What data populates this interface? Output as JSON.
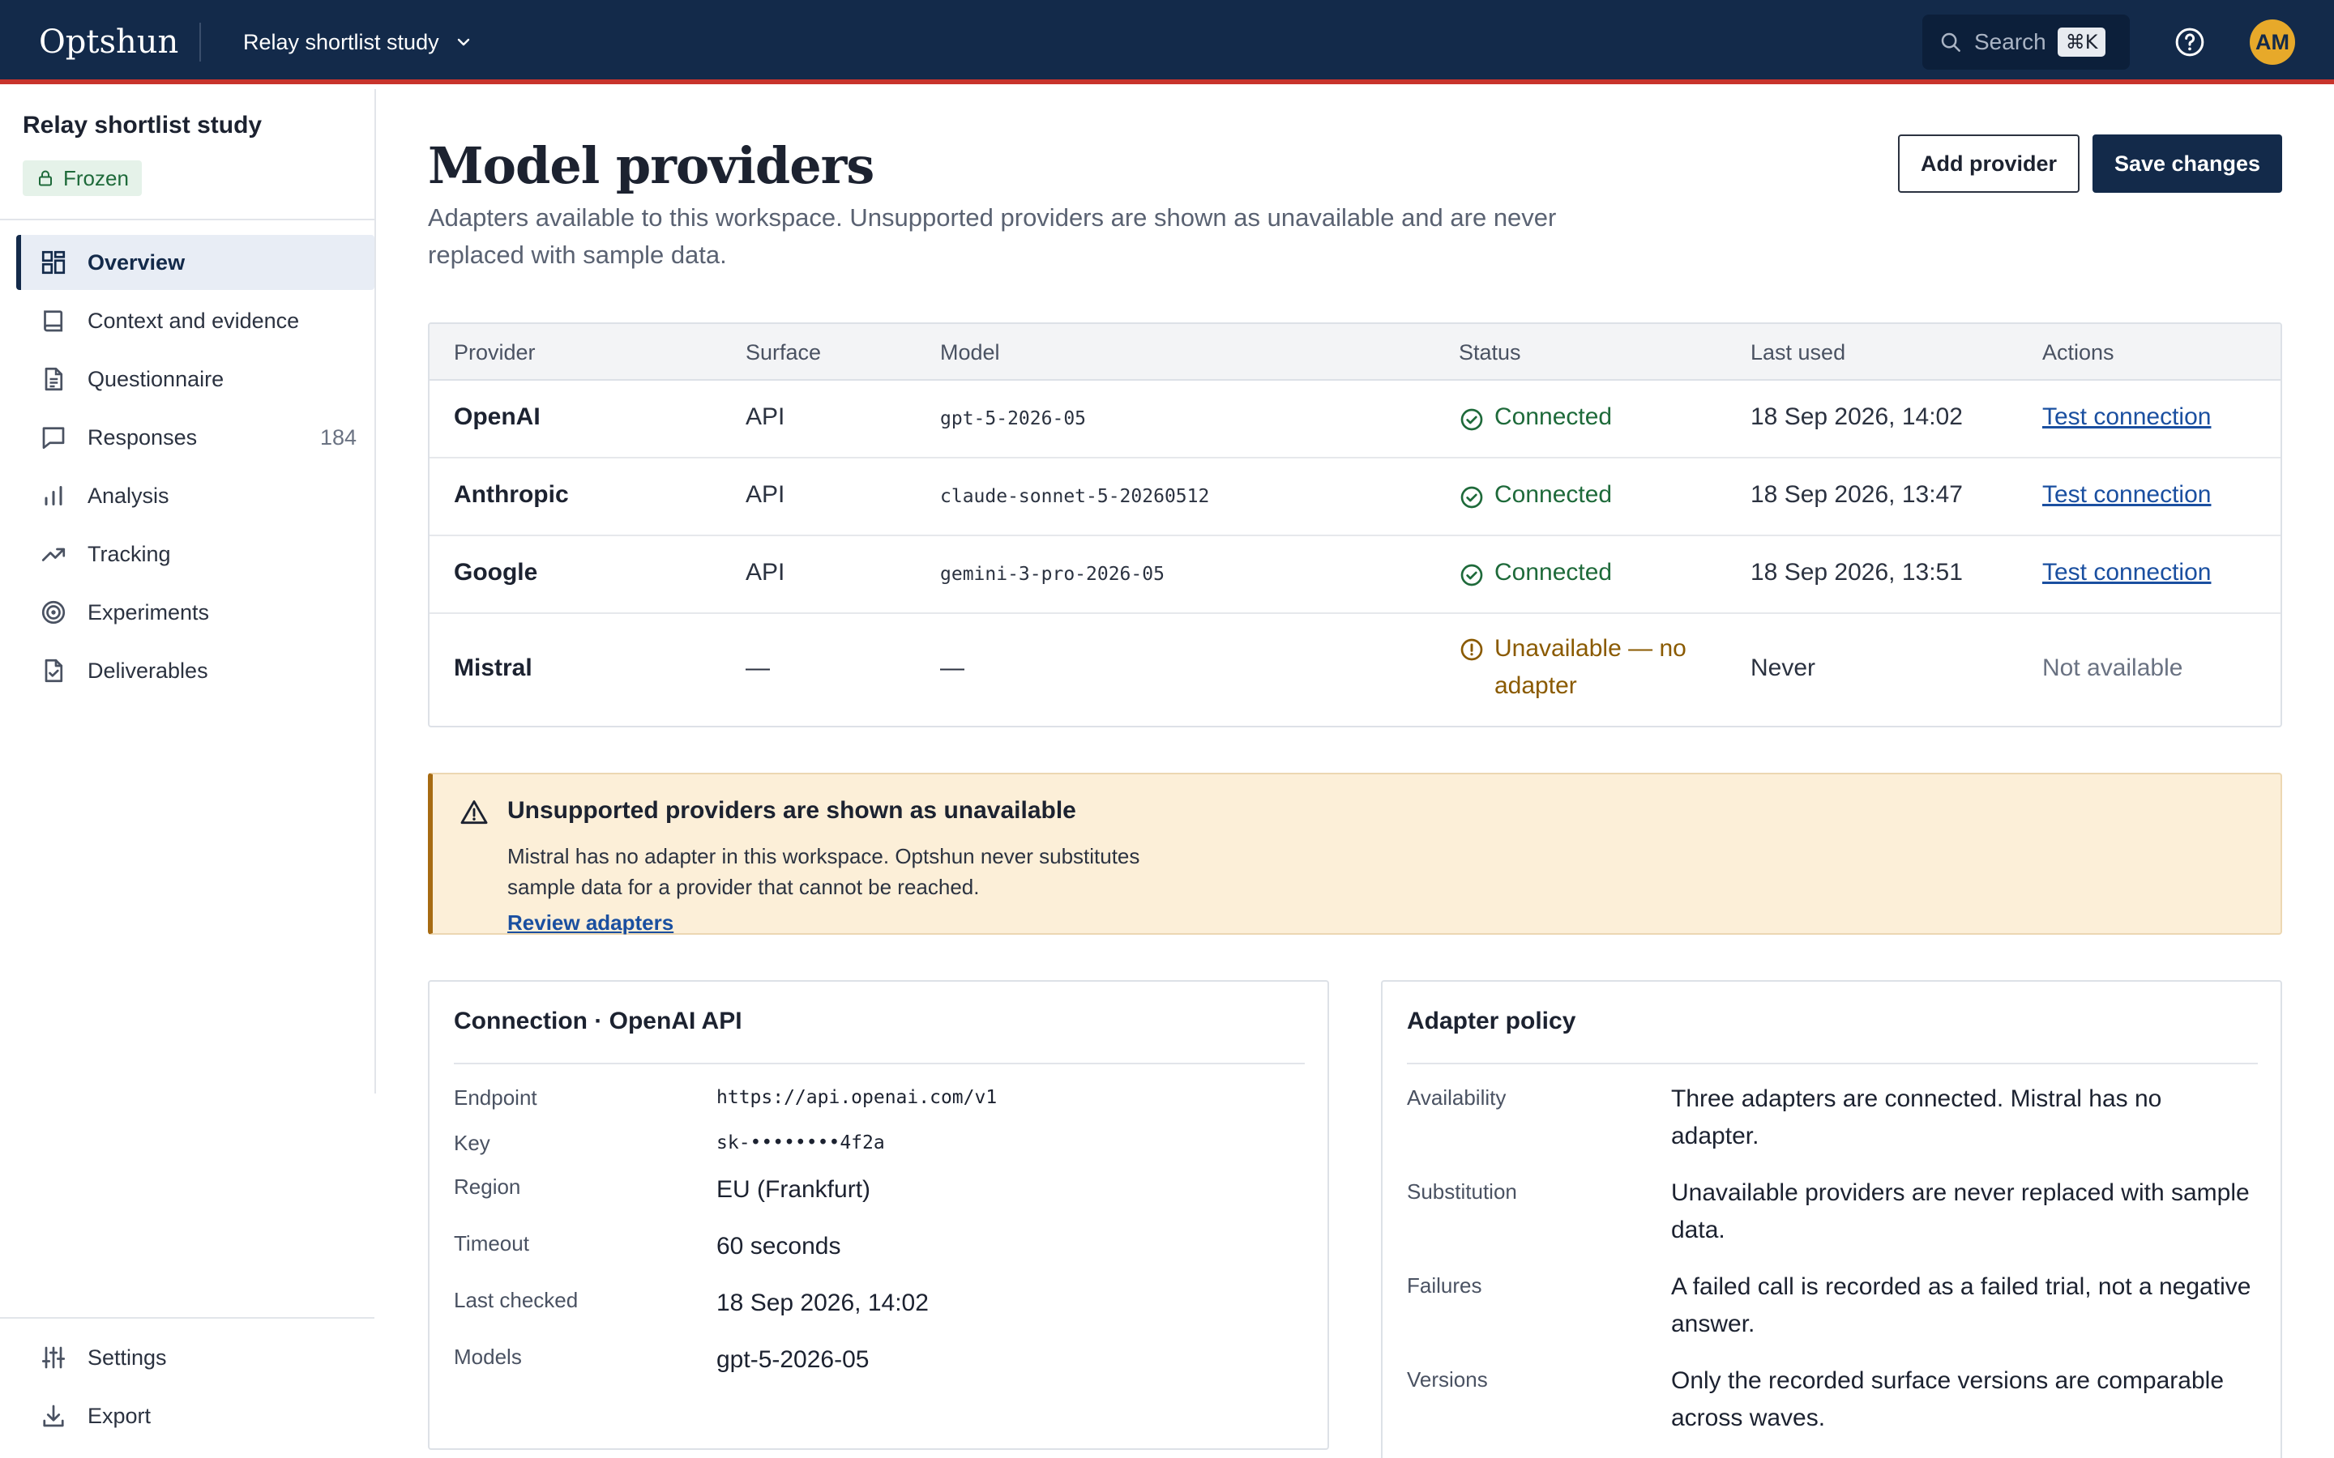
{
  "topbar": {
    "brand": "Optshun",
    "project": "Relay shortlist study",
    "search_label": "Search",
    "search_shortcut": "⌘K",
    "avatar_initials": "AM"
  },
  "sidebar": {
    "study_name": "Relay shortlist study",
    "status_badge": "Frozen",
    "items": [
      {
        "label": "Overview",
        "icon": "grid-icon"
      },
      {
        "label": "Context and evidence",
        "icon": "book-icon"
      },
      {
        "label": "Questionnaire",
        "icon": "document-icon"
      },
      {
        "label": "Responses",
        "icon": "chat-icon",
        "count": "184"
      },
      {
        "label": "Analysis",
        "icon": "bar-chart-icon"
      },
      {
        "label": "Tracking",
        "icon": "trend-icon"
      },
      {
        "label": "Experiments",
        "icon": "target-icon"
      },
      {
        "label": "Deliverables",
        "icon": "file-check-icon"
      }
    ],
    "footer_items": [
      {
        "label": "Settings",
        "icon": "sliders-icon"
      },
      {
        "label": "Export",
        "icon": "download-icon"
      }
    ]
  },
  "page": {
    "title": "Model providers",
    "subtitle": "Adapters available to this workspace. Unsupported providers are shown as unavailable and are never replaced with sample data.",
    "add_button": "Add provider",
    "save_button": "Save changes"
  },
  "table": {
    "headers": [
      "Provider",
      "Surface",
      "Model",
      "Status",
      "Last used",
      "Actions"
    ],
    "rows": [
      {
        "provider": "OpenAI",
        "surface": "API",
        "model": "gpt-5-2026-05",
        "status": "Connected",
        "last_used": "18 Sep 2026, 14:02",
        "action": "Test connection"
      },
      {
        "provider": "Anthropic",
        "surface": "API",
        "model": "claude-sonnet-5-20260512",
        "status": "Connected",
        "last_used": "18 Sep 2026, 13:47",
        "action": "Test connection"
      },
      {
        "provider": "Google",
        "surface": "API",
        "model": "gemini-3-pro-2026-05",
        "status": "Connected",
        "last_used": "18 Sep 2026, 13:51",
        "action": "Test connection"
      },
      {
        "provider": "Mistral",
        "surface": "—",
        "model": "—",
        "status": "Unavailable — no adapter",
        "last_used": "Never",
        "action": "Not available"
      }
    ]
  },
  "alert": {
    "title": "Unsupported providers are shown as unavailable",
    "body": "Mistral has no adapter in this workspace. Optshun never substitutes sample data for a provider that cannot be reached.",
    "link": "Review adapters"
  },
  "connection": {
    "title": "Connection · OpenAI API",
    "fields": [
      {
        "label": "Endpoint",
        "value": "https://api.openai.com/v1"
      },
      {
        "label": "Key",
        "value": "sk-••••••••4f2a"
      },
      {
        "label": "Region",
        "value": "EU (Frankfurt)"
      },
      {
        "label": "Timeout",
        "value": "60 seconds"
      },
      {
        "label": "Last checked",
        "value": "18 Sep 2026, 14:02"
      },
      {
        "label": "Models",
        "value": "gpt-5-2026-05"
      }
    ]
  },
  "policy": {
    "title": "Adapter policy",
    "items": [
      {
        "label": "Availability",
        "value": "Three adapters are connected. Mistral has no adapter."
      },
      {
        "label": "Substitution",
        "value": "Unavailable providers are never replaced with sample data."
      },
      {
        "label": "Failures",
        "value": "A failed call is recorded as a failed trial, not a negative answer."
      },
      {
        "label": "Versions",
        "value": "Only the recorded surface versions are comparable across waves."
      }
    ]
  },
  "colors": {
    "topbar": "#132a4a",
    "accent_rule": "#c8342c",
    "success": "#1e6a3a",
    "warning": "#8a5a00",
    "link": "#1a4fa0",
    "alert_bg": "#fcefd8"
  }
}
